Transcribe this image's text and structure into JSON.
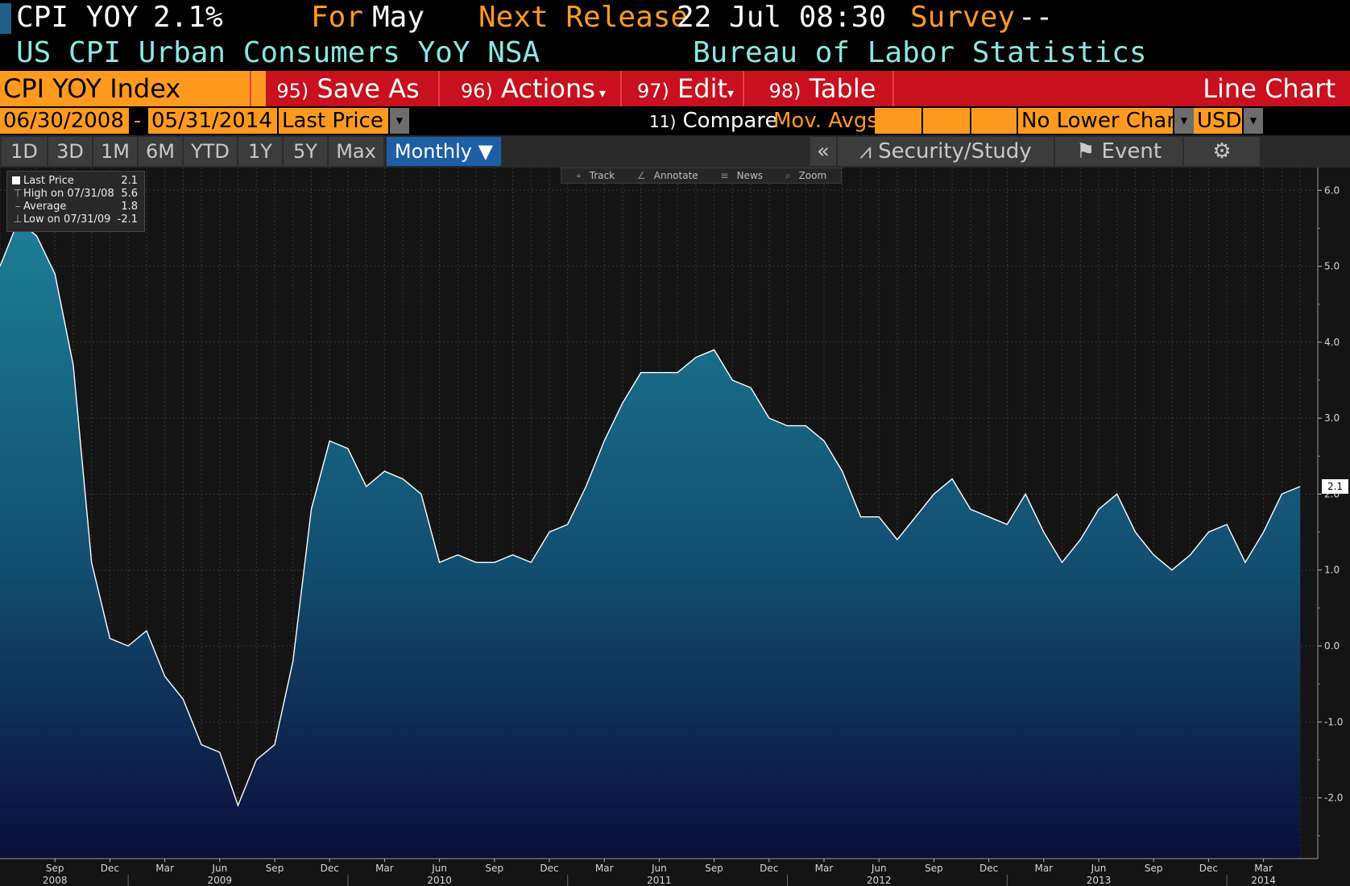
{
  "header": {
    "ticker": "CPI YOY",
    "value": "2.1%",
    "for_label": "For",
    "period": "May",
    "next_release_label": "Next Release",
    "next_release_value": "22 Jul 08:30",
    "survey_label": "Survey",
    "survey_value": "--",
    "description": "US CPI Urban Consumers YoY NSA",
    "source": "Bureau of Labor Statistics"
  },
  "menubar": {
    "security": "CPI YOY Index",
    "save_num": "95)",
    "save_label": "Save As",
    "actions_num": "96)",
    "actions_label": "Actions",
    "edit_num": "97)",
    "edit_label": "Edit",
    "table_num": "98)",
    "table_label": "Table",
    "chart_type": "Line Chart"
  },
  "params": {
    "start_date": "06/30/2008",
    "dash": "-",
    "end_date": "05/31/2014",
    "field": "Last Price",
    "compare_num": "11)",
    "compare_label": "Compare",
    "mov_avgs": "Mov. Avgs",
    "lower_chart": "No Lower Chart",
    "currency": "USD"
  },
  "periods": [
    "1D",
    "3D",
    "1M",
    "6M",
    "YTD",
    "1Y",
    "5Y",
    "Max"
  ],
  "frequency": "Monthly ▼",
  "right_tools": {
    "collapse": "«",
    "security_study": "Security/Study",
    "event": "Event",
    "settings_icon": "gear-icon"
  },
  "toolstrip": {
    "track": "Track",
    "annotate": "Annotate",
    "news": "News",
    "zoom": "Zoom"
  },
  "legend": {
    "last_label": "Last Price",
    "last_value": "2.1",
    "high_label": "High on 07/31/08",
    "high_value": "5.6",
    "avg_label": "Average",
    "avg_value": "1.8",
    "low_label": "Low on 07/31/09",
    "low_value": "-2.1"
  },
  "price_flag": "2.1",
  "colors": {
    "amber": "#ff9a1e",
    "cyan_text": "#8ae6e3",
    "menu_red": "#c8101e",
    "area_top": "#1c7f96",
    "area_bottom": "#0b0d3a",
    "line": "#ffffff"
  },
  "chart_data": {
    "type": "area",
    "title": "",
    "xlabel": "",
    "ylabel": "",
    "ylim": [
      -2.8,
      6.3
    ],
    "yticks": [
      6.0,
      5.0,
      4.0,
      3.0,
      2.0,
      1.0,
      0.0,
      -1.0,
      -2.0
    ],
    "ytick_labels": [
      "6.0",
      "5.0",
      "4.0",
      "3.0",
      "2.0",
      "1.0",
      "0.0",
      "-1.0",
      "-2.0"
    ],
    "x_start": "2008-06",
    "x_ticks": [
      {
        "month": "Sep",
        "year": "2008",
        "date": "2008-09"
      },
      {
        "month": "Dec",
        "year": "",
        "date": "2008-12"
      },
      {
        "month": "Mar",
        "year": "",
        "date": "2009-03"
      },
      {
        "month": "Jun",
        "year": "2009",
        "date": "2009-06"
      },
      {
        "month": "Sep",
        "year": "",
        "date": "2009-09"
      },
      {
        "month": "Dec",
        "year": "",
        "date": "2009-12"
      },
      {
        "month": "Mar",
        "year": "",
        "date": "2010-03"
      },
      {
        "month": "Jun",
        "year": "2010",
        "date": "2010-06"
      },
      {
        "month": "Sep",
        "year": "",
        "date": "2010-09"
      },
      {
        "month": "Dec",
        "year": "",
        "date": "2010-12"
      },
      {
        "month": "Mar",
        "year": "",
        "date": "2011-03"
      },
      {
        "month": "Jun",
        "year": "2011",
        "date": "2011-06"
      },
      {
        "month": "Sep",
        "year": "",
        "date": "2011-09"
      },
      {
        "month": "Dec",
        "year": "",
        "date": "2011-12"
      },
      {
        "month": "Mar",
        "year": "",
        "date": "2012-03"
      },
      {
        "month": "Jun",
        "year": "2012",
        "date": "2012-06"
      },
      {
        "month": "Sep",
        "year": "",
        "date": "2012-09"
      },
      {
        "month": "Dec",
        "year": "",
        "date": "2012-12"
      },
      {
        "month": "Mar",
        "year": "",
        "date": "2013-03"
      },
      {
        "month": "Jun",
        "year": "2013",
        "date": "2013-06"
      },
      {
        "month": "Sep",
        "year": "",
        "date": "2013-09"
      },
      {
        "month": "Dec",
        "year": "",
        "date": "2013-12"
      },
      {
        "month": "Mar",
        "year": "2014",
        "date": "2014-03"
      }
    ],
    "series": [
      {
        "name": "Last Price",
        "points": [
          [
            "2008-06",
            5.0
          ],
          [
            "2008-07",
            5.6
          ],
          [
            "2008-08",
            5.4
          ],
          [
            "2008-09",
            4.9
          ],
          [
            "2008-10",
            3.7
          ],
          [
            "2008-11",
            1.1
          ],
          [
            "2008-12",
            0.1
          ],
          [
            "2009-01",
            0.0
          ],
          [
            "2009-02",
            0.2
          ],
          [
            "2009-03",
            -0.4
          ],
          [
            "2009-04",
            -0.7
          ],
          [
            "2009-05",
            -1.3
          ],
          [
            "2009-06",
            -1.4
          ],
          [
            "2009-07",
            -2.1
          ],
          [
            "2009-08",
            -1.5
          ],
          [
            "2009-09",
            -1.3
          ],
          [
            "2009-10",
            -0.2
          ],
          [
            "2009-11",
            1.8
          ],
          [
            "2009-12",
            2.7
          ],
          [
            "2010-01",
            2.6
          ],
          [
            "2010-02",
            2.1
          ],
          [
            "2010-03",
            2.3
          ],
          [
            "2010-04",
            2.2
          ],
          [
            "2010-05",
            2.0
          ],
          [
            "2010-06",
            1.1
          ],
          [
            "2010-07",
            1.2
          ],
          [
            "2010-08",
            1.1
          ],
          [
            "2010-09",
            1.1
          ],
          [
            "2010-10",
            1.2
          ],
          [
            "2010-11",
            1.1
          ],
          [
            "2010-12",
            1.5
          ],
          [
            "2011-01",
            1.6
          ],
          [
            "2011-02",
            2.1
          ],
          [
            "2011-03",
            2.7
          ],
          [
            "2011-04",
            3.2
          ],
          [
            "2011-05",
            3.6
          ],
          [
            "2011-06",
            3.6
          ],
          [
            "2011-07",
            3.6
          ],
          [
            "2011-08",
            3.8
          ],
          [
            "2011-09",
            3.9
          ],
          [
            "2011-10",
            3.5
          ],
          [
            "2011-11",
            3.4
          ],
          [
            "2011-12",
            3.0
          ],
          [
            "2012-01",
            2.9
          ],
          [
            "2012-02",
            2.9
          ],
          [
            "2012-03",
            2.7
          ],
          [
            "2012-04",
            2.3
          ],
          [
            "2012-05",
            1.7
          ],
          [
            "2012-06",
            1.7
          ],
          [
            "2012-07",
            1.4
          ],
          [
            "2012-08",
            1.7
          ],
          [
            "2012-09",
            2.0
          ],
          [
            "2012-10",
            2.2
          ],
          [
            "2012-11",
            1.8
          ],
          [
            "2012-12",
            1.7
          ],
          [
            "2013-01",
            1.6
          ],
          [
            "2013-02",
            2.0
          ],
          [
            "2013-03",
            1.5
          ],
          [
            "2013-04",
            1.1
          ],
          [
            "2013-05",
            1.4
          ],
          [
            "2013-06",
            1.8
          ],
          [
            "2013-07",
            2.0
          ],
          [
            "2013-08",
            1.5
          ],
          [
            "2013-09",
            1.2
          ],
          [
            "2013-10",
            1.0
          ],
          [
            "2013-11",
            1.2
          ],
          [
            "2013-12",
            1.5
          ],
          [
            "2014-01",
            1.6
          ],
          [
            "2014-02",
            1.1
          ],
          [
            "2014-03",
            1.5
          ],
          [
            "2014-04",
            2.0
          ],
          [
            "2014-05",
            2.1
          ]
        ]
      }
    ],
    "grid": true,
    "legend_position": "top-left"
  }
}
